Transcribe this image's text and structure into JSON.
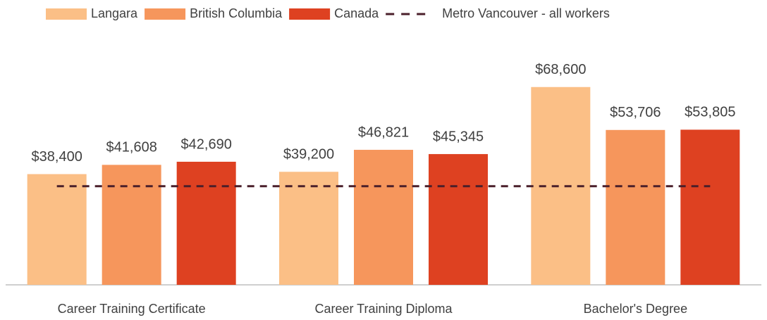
{
  "chart_data": {
    "type": "bar",
    "categories": [
      "Career Training Certificate",
      "Career Training Diploma",
      "Bachelor's Degree"
    ],
    "series": [
      {
        "name": "Langara",
        "color": "#fbbf86",
        "values": [
          38400,
          39200,
          68600
        ],
        "value_labels": [
          "$38,400",
          "$39,200",
          "$68,600"
        ]
      },
      {
        "name": "British Columbia",
        "color": "#f6965c",
        "values": [
          41608,
          46821,
          53706
        ],
        "value_labels": [
          "$41,608",
          "$46,821",
          "$53,706"
        ]
      },
      {
        "name": "Canada",
        "color": "#de4121",
        "values": [
          42690,
          45345,
          53805
        ],
        "value_labels": [
          "$42,690",
          "$45,345",
          "$53,805"
        ]
      },
      {
        "name": "Metro Vancouver - all workers",
        "type": "line",
        "dashed": true,
        "color": "#4a1f2a",
        "values": [
          34200,
          34200,
          34200
        ]
      }
    ],
    "ylim": [
      0,
      80000
    ],
    "legend": "top"
  }
}
